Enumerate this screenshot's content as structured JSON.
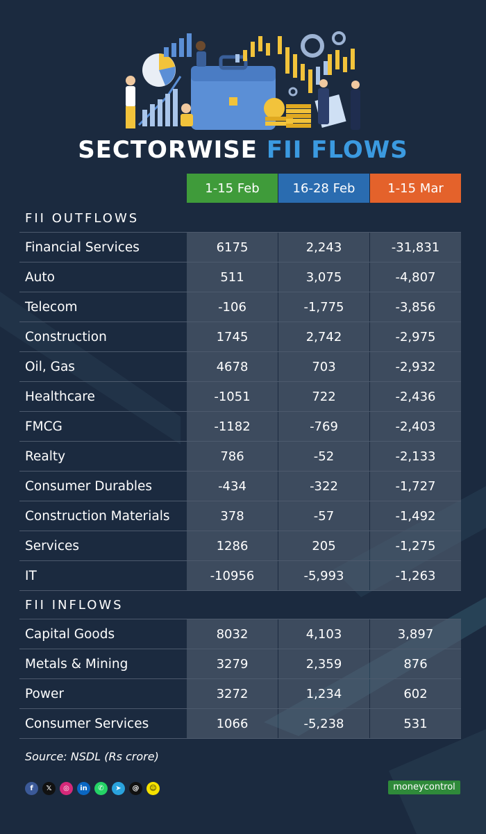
{
  "header": {
    "title_white": "SECTORWISE",
    "title_blue": "FII FLOWS"
  },
  "columns": [
    "1-15 Feb",
    "16-28 Feb",
    "1-15 Mar"
  ],
  "column_colors": [
    "#3f9b3a",
    "#2a6cb0",
    "#e4622b"
  ],
  "outflows": {
    "heading": "FII OUTFLOWS",
    "rows": [
      {
        "sector": "Financial Services",
        "v1": "6175",
        "v2": "2,243",
        "v3": "-31,831"
      },
      {
        "sector": "Auto",
        "v1": "511",
        "v2": "3,075",
        "v3": "-4,807"
      },
      {
        "sector": "Telecom",
        "v1": "-106",
        "v2": "-1,775",
        "v3": "-3,856"
      },
      {
        "sector": "Construction",
        "v1": "1745",
        "v2": "2,742",
        "v3": "-2,975"
      },
      {
        "sector": "Oil, Gas",
        "v1": "4678",
        "v2": "703",
        "v3": "-2,932"
      },
      {
        "sector": "Healthcare",
        "v1": "-1051",
        "v2": "722",
        "v3": "-2,436"
      },
      {
        "sector": "FMCG",
        "v1": "-1182",
        "v2": "-769",
        "v3": "-2,403"
      },
      {
        "sector": "Realty",
        "v1": "786",
        "v2": "-52",
        "v3": "-2,133"
      },
      {
        "sector": "Consumer Durables",
        "v1": "-434",
        "v2": "-322",
        "v3": "-1,727"
      },
      {
        "sector": "Construction Materials",
        "v1": "378",
        "v2": "-57",
        "v3": "-1,492"
      },
      {
        "sector": "Services",
        "v1": "1286",
        "v2": "205",
        "v3": "-1,275"
      },
      {
        "sector": "IT",
        "v1": "-10956",
        "v2": "-5,993",
        "v3": "-1,263"
      }
    ]
  },
  "inflows": {
    "heading": "FII INFLOWS",
    "rows": [
      {
        "sector": "Capital Goods",
        "v1": "8032",
        "v2": "4,103",
        "v3": "3,897"
      },
      {
        "sector": "Metals & Mining",
        "v1": "3279",
        "v2": "2,359",
        "v3": "876"
      },
      {
        "sector": "Power",
        "v1": "3272",
        "v2": "1,234",
        "v3": "602"
      },
      {
        "sector": "Consumer Services",
        "v1": "1066",
        "v2": "-5,238",
        "v3": "531"
      }
    ]
  },
  "footer": {
    "source": "Source: NSDL (Rs crore)",
    "social_icons": [
      "facebook-icon",
      "x-icon",
      "instagram-icon",
      "linkedin-icon",
      "whatsapp-icon",
      "telegram-icon",
      "threads-icon",
      "snapchat-icon"
    ],
    "social_glyphs": [
      "f",
      "𝕏",
      "◎",
      "in",
      "✆",
      "➤",
      "@",
      "☺"
    ],
    "social_colors": [
      "#3b5998",
      "#111111",
      "#d6297a",
      "#0a66c2",
      "#25d366",
      "#2aa3de",
      "#111111",
      "#f5e100"
    ],
    "brand": "moneycontrol"
  }
}
